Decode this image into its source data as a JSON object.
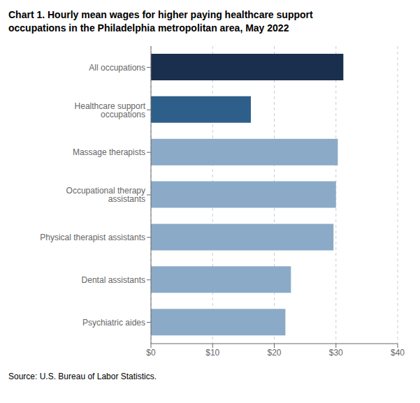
{
  "chart_data": {
    "type": "bar",
    "orientation": "horizontal",
    "title": "Chart 1. Hourly mean wages for higher paying healthcare support",
    "subtitle": "occupations in the Philadelphia metropolitan area, May 2022",
    "categories": [
      "Psychiatric aides",
      "Dental assistants",
      "Physical therapist assistants",
      "Occupational therapy assistants",
      "Massage therapists",
      "Healthcare support occupations",
      "All occupations"
    ],
    "values": [
      21.8,
      22.7,
      29.6,
      30.0,
      30.3,
      16.2,
      31.2
    ],
    "colors": [
      "#8baac8",
      "#8baac8",
      "#8baac8",
      "#8baac8",
      "#8baac8",
      "#2e5f8a",
      "#1a2f4e"
    ],
    "xlim": [
      0,
      40
    ],
    "xticks": [
      {
        "value": 0,
        "label": "$0"
      },
      {
        "value": 10,
        "label": "$10"
      },
      {
        "value": 20,
        "label": "$20"
      },
      {
        "value": 30,
        "label": "$30"
      },
      {
        "value": 40,
        "label": "$40"
      }
    ],
    "grid": true,
    "annotations": [
      "Source: U.S. Bureau of Labor Statistics."
    ]
  }
}
